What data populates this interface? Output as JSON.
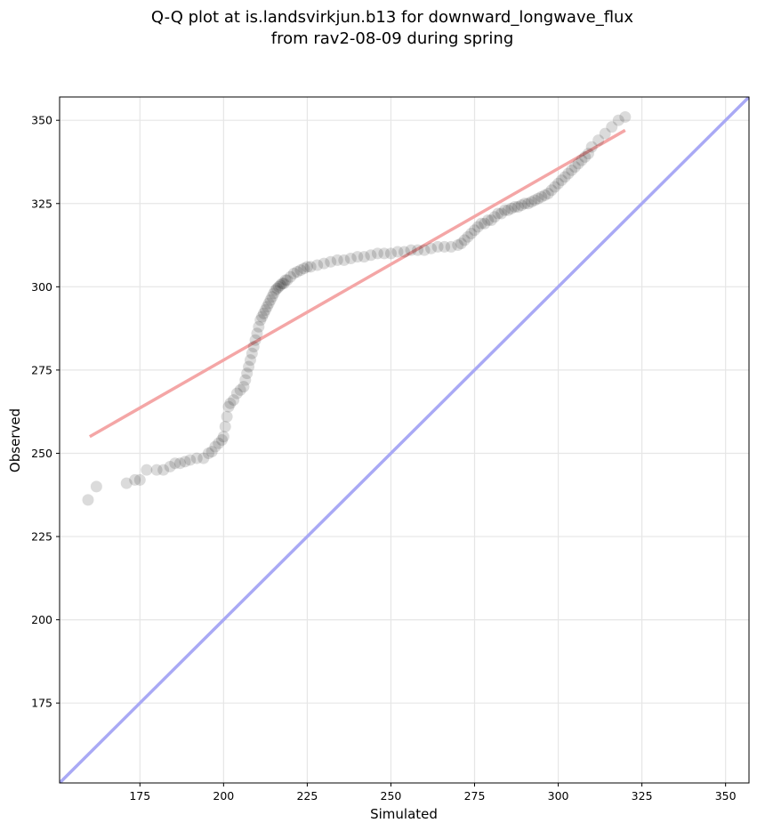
{
  "chart_data": {
    "type": "scatter",
    "title_lines": [
      "Q-Q plot at is.landsvirkjun.b13 for downward_longwave_flux",
      "from rav2-08-09 during spring"
    ],
    "xlabel": "Simulated",
    "ylabel": "Observed",
    "xlim": [
      151,
      357
    ],
    "ylim": [
      151,
      357
    ],
    "xticks": [
      175,
      200,
      225,
      250,
      275,
      300,
      325,
      350
    ],
    "yticks": [
      175,
      200,
      225,
      250,
      275,
      300,
      325,
      350
    ],
    "grid": true,
    "point_color": "#000000",
    "points_x": [
      159.5,
      162,
      171,
      173.5,
      175,
      177,
      180,
      182,
      184,
      185.5,
      187,
      188.5,
      190,
      192,
      194,
      195.5,
      196.5,
      197.5,
      198.5,
      199.5,
      200,
      200.5,
      201,
      201.5,
      202,
      203,
      204,
      205,
      206,
      206.5,
      207,
      207.5,
      208,
      208.5,
      209,
      209.5,
      210,
      210.5,
      211,
      211.5,
      212,
      212.5,
      213,
      213.5,
      214,
      214.5,
      215,
      215.5,
      216,
      216.5,
      217,
      217.5,
      218,
      218.5,
      219,
      220,
      221,
      222,
      223,
      224,
      225,
      226,
      228,
      230,
      232,
      234,
      236,
      238,
      240,
      242,
      244,
      246,
      248,
      250,
      252,
      254,
      256,
      258,
      260,
      262,
      264,
      266,
      268,
      270,
      271,
      272,
      273,
      274,
      275,
      276,
      277,
      278,
      279,
      280,
      281,
      282,
      283,
      284,
      285,
      286,
      287,
      288,
      289,
      290,
      291,
      292,
      293,
      294,
      295,
      296,
      297,
      298,
      299,
      300,
      301,
      302,
      303,
      304,
      305,
      306,
      307,
      308,
      309,
      310,
      312,
      314,
      316,
      318,
      320
    ],
    "points_y": [
      236,
      240,
      241,
      242,
      242,
      245,
      245,
      245,
      246,
      247,
      247,
      247.5,
      248,
      248.5,
      248.5,
      250,
      250.5,
      252,
      253,
      254,
      255,
      258,
      261,
      264,
      265,
      266,
      268,
      269,
      270,
      272,
      274,
      276,
      278,
      280,
      282,
      284,
      286,
      288,
      290,
      291,
      292,
      293,
      294,
      295,
      296,
      297,
      298,
      299,
      299.5,
      300,
      300.5,
      301,
      301,
      302,
      302,
      303,
      304,
      304.5,
      305,
      305.5,
      306,
      306,
      306.5,
      307,
      307.5,
      308,
      308,
      308.5,
      309,
      309,
      309.5,
      310,
      310,
      310,
      310.5,
      310.5,
      311,
      311,
      311,
      311.5,
      312,
      312,
      312,
      312.5,
      313,
      314,
      315,
      316,
      317,
      318,
      319,
      319,
      320,
      320,
      321,
      322,
      322,
      323,
      323,
      323.5,
      324,
      324,
      324.5,
      325,
      325,
      325.5,
      326,
      326.5,
      327,
      327.5,
      328,
      329,
      330,
      331,
      332,
      333,
      334,
      335,
      336,
      337,
      338,
      339,
      340,
      342,
      344,
      346,
      348,
      350,
      351
    ],
    "reference_lines": [
      {
        "kind": "fit",
        "color": "#f4a6a6",
        "x": [
          160,
          320
        ],
        "y": [
          255,
          347
        ]
      },
      {
        "kind": "identity",
        "color": "#a9a9f5",
        "x": [
          151,
          357
        ],
        "y": [
          151,
          357
        ]
      }
    ]
  }
}
